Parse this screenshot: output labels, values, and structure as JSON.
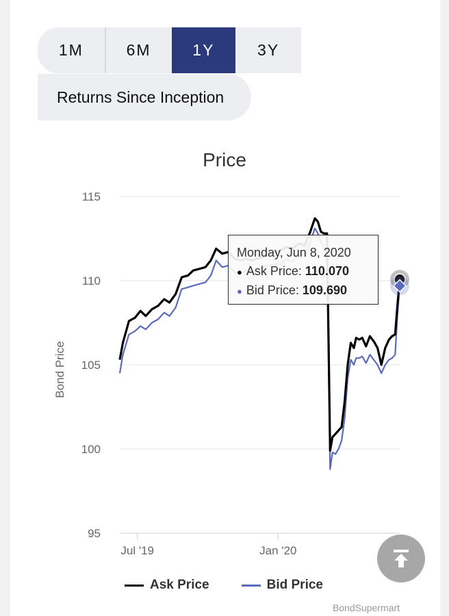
{
  "tabs": {
    "items": [
      "1M",
      "6M",
      "1Y",
      "3Y"
    ],
    "active": "1Y",
    "inception_label": "Returns Since Inception"
  },
  "tooltip": {
    "date": "Monday, Jun 8, 2020",
    "ask_label": "Ask Price:",
    "ask_value": "110.070",
    "bid_label": "Bid Price:",
    "bid_value": "109.690"
  },
  "credits": "BondSupermart",
  "icons": {
    "back_to_top": "arrow-up-bar-icon"
  },
  "colors": {
    "ask": "#000000",
    "bid": "#5a6bbd",
    "active_tab": "#2b3a7c"
  },
  "chart_data": {
    "type": "line",
    "title": "Price",
    "ylabel": "Bond Price",
    "xlabel": "",
    "ylim": [
      95,
      115
    ],
    "yticks": [
      95,
      100,
      105,
      110,
      115
    ],
    "xticks": [
      "2019-07-01",
      "2020-01-01"
    ],
    "xtick_labels": [
      "Jul '19",
      "Jan '20"
    ],
    "xlim": [
      "2019-06-08",
      "2020-06-08"
    ],
    "grid": true,
    "legend": "bottom-center",
    "series": [
      {
        "name": "Ask Price",
        "x": [
          "2019-06-08",
          "2019-06-12",
          "2019-06-20",
          "2019-06-28",
          "2019-07-05",
          "2019-07-12",
          "2019-07-20",
          "2019-07-28",
          "2019-08-05",
          "2019-08-12",
          "2019-08-20",
          "2019-08-28",
          "2019-09-05",
          "2019-09-12",
          "2019-09-20",
          "2019-09-28",
          "2019-10-05",
          "2019-10-12",
          "2019-10-20",
          "2019-10-28",
          "2019-11-05",
          "2019-11-12",
          "2019-11-20",
          "2019-11-28",
          "2019-12-05",
          "2019-12-12",
          "2019-12-20",
          "2019-12-28",
          "2020-01-05",
          "2020-01-12",
          "2020-01-20",
          "2020-01-28",
          "2020-02-05",
          "2020-02-12",
          "2020-02-18",
          "2020-02-22",
          "2020-02-26",
          "2020-03-01",
          "2020-03-05",
          "2020-03-09",
          "2020-03-12",
          "2020-03-16",
          "2020-03-20",
          "2020-03-24",
          "2020-03-28",
          "2020-04-01",
          "2020-04-05",
          "2020-04-09",
          "2020-04-12",
          "2020-04-16",
          "2020-04-20",
          "2020-04-25",
          "2020-04-30",
          "2020-05-05",
          "2020-05-10",
          "2020-05-15",
          "2020-05-20",
          "2020-05-25",
          "2020-05-29",
          "2020-06-02",
          "2020-06-05",
          "2020-06-08"
        ],
        "values": [
          105.3,
          106.3,
          107.6,
          107.8,
          108.2,
          107.9,
          108.3,
          108.5,
          108.9,
          108.7,
          109.2,
          110.2,
          110.3,
          110.6,
          110.7,
          110.8,
          111.2,
          111.9,
          111.6,
          111.7,
          111.3,
          111.2,
          111.3,
          111.2,
          111.3,
          111.4,
          111.6,
          111.7,
          111.8,
          112.0,
          111.9,
          112.2,
          112.1,
          112.9,
          113.7,
          113.5,
          112.9,
          112.8,
          112.8,
          99.9,
          100.7,
          100.9,
          101.1,
          101.3,
          102.8,
          105.0,
          106.3,
          106.0,
          106.6,
          106.5,
          106.6,
          106.1,
          106.7,
          106.4,
          106.0,
          105.0,
          106.0,
          106.5,
          106.7,
          106.8,
          108.5,
          110.07
        ]
      },
      {
        "name": "Bid Price",
        "x": [
          "2019-06-08",
          "2019-06-12",
          "2019-06-20",
          "2019-06-28",
          "2019-07-05",
          "2019-07-12",
          "2019-07-20",
          "2019-07-28",
          "2019-08-05",
          "2019-08-12",
          "2019-08-20",
          "2019-08-28",
          "2019-09-05",
          "2019-09-12",
          "2019-09-20",
          "2019-09-28",
          "2019-10-05",
          "2019-10-12",
          "2019-10-20",
          "2019-10-28",
          "2019-11-05",
          "2019-11-12",
          "2019-11-20",
          "2019-11-28",
          "2019-12-05",
          "2019-12-12",
          "2019-12-20",
          "2019-12-28",
          "2020-01-05",
          "2020-01-12",
          "2020-01-20",
          "2020-01-28",
          "2020-02-05",
          "2020-02-12",
          "2020-02-18",
          "2020-02-22",
          "2020-02-26",
          "2020-03-01",
          "2020-03-05",
          "2020-03-09",
          "2020-03-12",
          "2020-03-16",
          "2020-03-20",
          "2020-03-24",
          "2020-03-28",
          "2020-04-01",
          "2020-04-05",
          "2020-04-09",
          "2020-04-12",
          "2020-04-16",
          "2020-04-20",
          "2020-04-25",
          "2020-04-30",
          "2020-05-05",
          "2020-05-10",
          "2020-05-15",
          "2020-05-20",
          "2020-05-25",
          "2020-05-29",
          "2020-06-02",
          "2020-06-05",
          "2020-06-08"
        ],
        "values": [
          104.5,
          105.6,
          106.8,
          107.0,
          107.3,
          107.1,
          107.5,
          107.7,
          108.1,
          107.9,
          108.4,
          109.5,
          109.6,
          109.7,
          109.8,
          109.9,
          110.3,
          111.2,
          110.8,
          110.9,
          110.5,
          110.4,
          110.6,
          110.5,
          110.6,
          110.8,
          110.9,
          111.0,
          111.0,
          111.3,
          111.1,
          111.6,
          111.5,
          112.3,
          113.1,
          112.8,
          112.3,
          112.0,
          111.5,
          98.8,
          99.8,
          99.7,
          100.0,
          100.5,
          101.8,
          104.2,
          105.3,
          105.0,
          105.4,
          105.4,
          105.5,
          105.1,
          105.6,
          105.3,
          105.0,
          104.5,
          105.0,
          105.3,
          105.4,
          105.6,
          107.9,
          109.69
        ]
      }
    ]
  }
}
